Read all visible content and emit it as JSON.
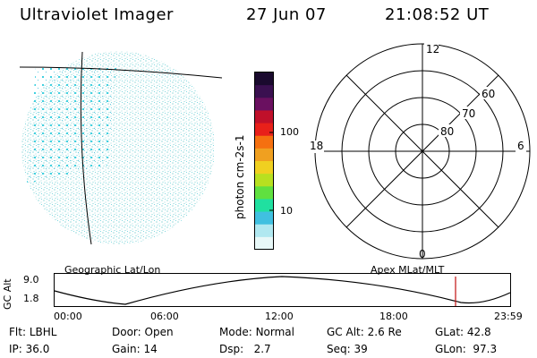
{
  "header": {
    "title": "Ultraviolet Imager",
    "date": "27 Jun 07",
    "time": "21:08:52 UT"
  },
  "colorbar": {
    "unit_label": "photon cm-2s-1",
    "ticks": [
      "100",
      "10"
    ],
    "colors": [
      "#1a0a2e",
      "#3a1050",
      "#6a1060",
      "#c0102a",
      "#e8201a",
      "#f57010",
      "#f0a020",
      "#f0d020",
      "#b8e020",
      "#60e040",
      "#20e0a0",
      "#40c0e0",
      "#b0e8f0",
      "#e8f8f8"
    ]
  },
  "polar": {
    "mlt_labels": [
      "12",
      "18",
      "6",
      "0"
    ],
    "lat_labels": [
      "60",
      "70",
      "80"
    ]
  },
  "panel_titles": {
    "left": "Geographic Lat/Lon",
    "right": "Apex MLat/MLT"
  },
  "gc_alt": {
    "axis_label": "GC Alt",
    "y_ticks": [
      "9.0",
      "1.8"
    ],
    "x_ticks": [
      "00:00",
      "06:00",
      "12:00",
      "18:00",
      "23:59"
    ]
  },
  "footer": {
    "flt_label": "Flt:",
    "flt_value": "LBHL",
    "door_label": "Door:",
    "door_value": "Open",
    "mode_label": "Mode:",
    "mode_value": "Normal",
    "gcalt_label": "GC Alt:",
    "gcalt_value": "2.6 Re",
    "glat_label": "GLat:",
    "glat_value": "42.8",
    "ip_label": "IP:",
    "ip_value": "36.0",
    "gain_label": "Gain:",
    "gain_value": "14",
    "dsp_label": "Dsp:",
    "dsp_value": "2.7",
    "seq_label": "Seq:",
    "seq_value": "39",
    "glon_label": "GLon:",
    "glon_value": "97.3"
  }
}
